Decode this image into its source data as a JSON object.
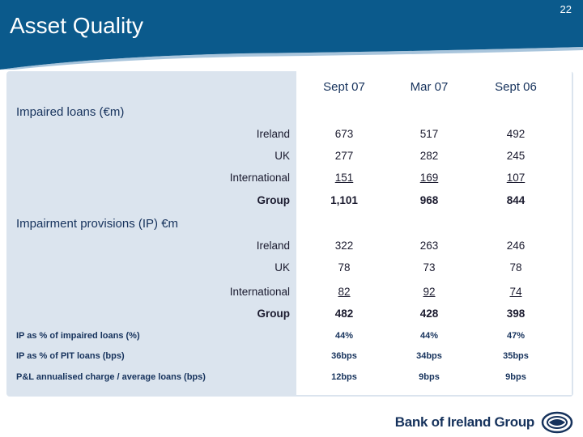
{
  "header": {
    "title": "Asset Quality",
    "page_number": "22",
    "band_color": "#0b5a8c"
  },
  "columns": [
    "Sept 07",
    "Mar 07",
    "Sept 06"
  ],
  "impaired_loans": {
    "label": "Impaired loans (€m)",
    "rows": [
      {
        "name": "Ireland",
        "values": [
          "673",
          "517",
          "492"
        ]
      },
      {
        "name": "UK",
        "values": [
          "277",
          "282",
          "245"
        ]
      },
      {
        "name": "International",
        "values": [
          "151",
          "169",
          "107"
        ]
      },
      {
        "name": "Group",
        "values": [
          "1,101",
          "968",
          "844"
        ]
      }
    ]
  },
  "impairment_provisions": {
    "label": "Impairment provisions (IP) €m",
    "rows": [
      {
        "name": "Ireland",
        "values": [
          "322",
          "263",
          "246"
        ]
      },
      {
        "name": "UK",
        "values": [
          "78",
          "73",
          "78"
        ]
      },
      {
        "name": "International",
        "values": [
          "82",
          "92",
          "74"
        ]
      },
      {
        "name": "Group",
        "values": [
          "482",
          "428",
          "398"
        ]
      }
    ]
  },
  "metrics": [
    {
      "name": "IP as % of impaired loans (%)",
      "values": [
        "44%",
        "44%",
        "47%"
      ]
    },
    {
      "name": "IP as % of PIT loans (bps)",
      "values": [
        "36bps",
        "34bps",
        "35bps"
      ]
    },
    {
      "name": "P&L annualised charge / average loans (bps)",
      "values": [
        "12bps",
        "9bps",
        "9bps"
      ]
    }
  ],
  "footer": {
    "logo_text": "Bank of Ireland Group",
    "logo_icon": "bank-of-ireland-logo-icon"
  }
}
